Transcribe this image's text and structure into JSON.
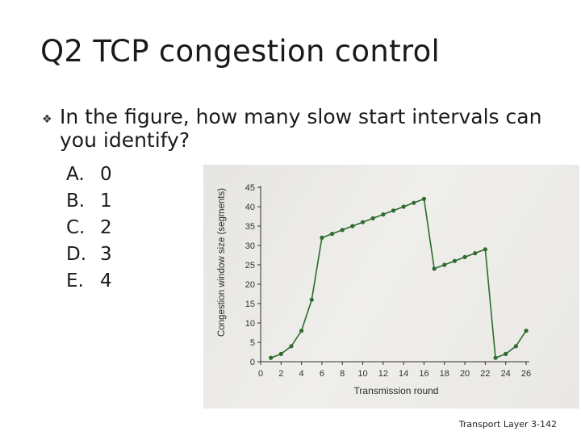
{
  "slide": {
    "title": "Q2 TCP congestion control",
    "bullet_icon": "diamond-bullet-icon",
    "question": "In the figure, how many slow start intervals can you identify?",
    "options": [
      {
        "letter": "A.",
        "value": "0"
      },
      {
        "letter": "B.",
        "value": "1"
      },
      {
        "letter": "C.",
        "value": "2"
      },
      {
        "letter": "D.",
        "value": "3"
      },
      {
        "letter": "E.",
        "value": "4"
      }
    ],
    "footer": "Transport Layer 3-142"
  },
  "chart_data": {
    "type": "line",
    "xlabel": "Transmission round",
    "ylabel": "Congestion window size (segments)",
    "xlim": [
      0,
      26
    ],
    "ylim": [
      0,
      45
    ],
    "xticks": [
      0,
      2,
      4,
      6,
      8,
      10,
      12,
      14,
      16,
      18,
      20,
      22,
      24,
      26
    ],
    "yticks": [
      0,
      5,
      10,
      15,
      20,
      25,
      30,
      35,
      40,
      45
    ],
    "grid": false,
    "series_color": "#2e6b2e",
    "series": [
      {
        "x": [
          1,
          2,
          3,
          4,
          5,
          6,
          7,
          8,
          9,
          10,
          11,
          12,
          13,
          14,
          15,
          16,
          17,
          18,
          19,
          20,
          21,
          22,
          23,
          24,
          25,
          26
        ],
        "values": [
          1,
          2,
          4,
          8,
          16,
          32,
          33,
          34,
          35,
          36,
          37,
          38,
          39,
          40,
          41,
          42,
          24,
          25,
          26,
          27,
          28,
          29,
          1,
          2,
          4,
          8
        ]
      }
    ]
  }
}
